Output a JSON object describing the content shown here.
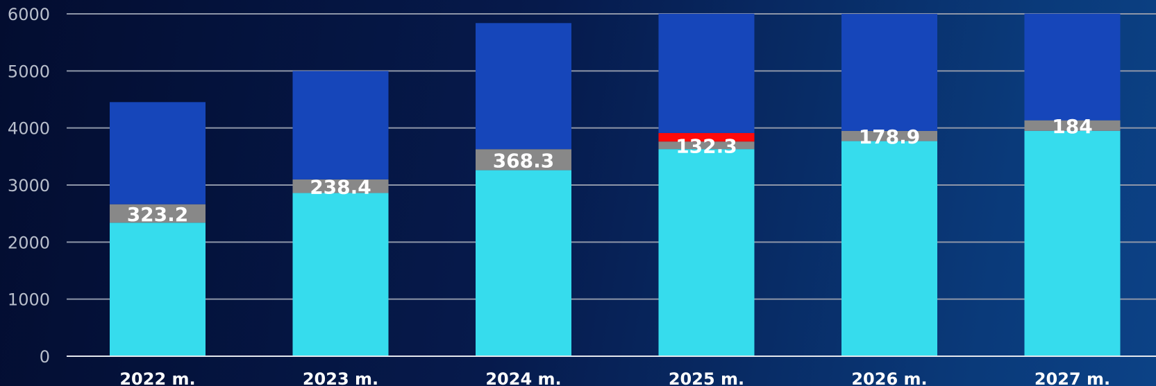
{
  "chart_data": {
    "type": "bar",
    "stacked": true,
    "title": "",
    "xlabel": "",
    "ylabel": "",
    "ylim": [
      0,
      6000
    ],
    "yticks": [
      0,
      1000,
      2000,
      3000,
      4000,
      5000,
      6000
    ],
    "grid": true,
    "categories": [
      "2022 m.",
      "2023 m.",
      "2024 m.",
      "2025 m.",
      "2026 m.",
      "2027 m."
    ],
    "series": [
      {
        "color": "#36dced",
        "values": [
          2340,
          2860,
          3260,
          3630,
          3770,
          3950
        ]
      },
      {
        "color": "#888888",
        "values": [
          323.2,
          238.4,
          368.3,
          132.3,
          178.9,
          184
        ],
        "labels": [
          "323.2",
          "238.4",
          "368.3",
          "132.3",
          "178.9",
          "184"
        ]
      },
      {
        "color": "#ff0a0a",
        "values": [
          0,
          0,
          0,
          150,
          0,
          0
        ]
      },
      {
        "color": "#1646ba",
        "values": [
          1790,
          1900,
          2210,
          2090,
          2050,
          1870
        ]
      }
    ]
  }
}
